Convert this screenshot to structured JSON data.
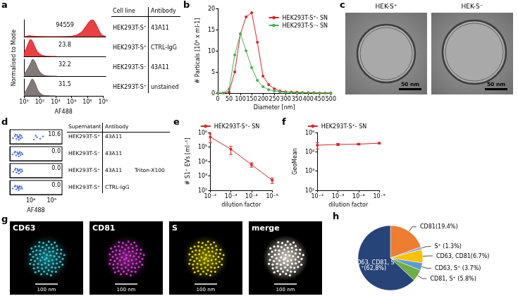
{
  "chart_data": [
    {
      "panel": "a",
      "type": "area",
      "xlabel": "AF488",
      "ylabel": "Normalised to Mode",
      "log": "x",
      "xlim": [
        10,
        1000000
      ],
      "xticks": [
        {
          "value": 10,
          "label": "10¹"
        },
        {
          "value": 100,
          "label": "10²"
        },
        {
          "value": 1000,
          "label": "10³"
        },
        {
          "value": 10000,
          "label": "10⁴"
        },
        {
          "value": 100000,
          "label": "10⁵"
        },
        {
          "value": 1000000,
          "label": "10⁶"
        }
      ],
      "ylim": [
        0,
        100
      ],
      "tick_labels": "x",
      "grid": false,
      "series": [
        {
          "color": "#e31e24",
          "mfi": 94559,
          "values": [
            [
              10,
              1
            ],
            [
              15,
              3
            ],
            [
              20,
              5
            ],
            [
              30,
              4
            ],
            [
              50,
              2
            ],
            [
              100,
              1
            ],
            [
              300,
              0.5
            ],
            [
              1000,
              0.5
            ],
            [
              3000,
              1
            ],
            [
              10000,
              4
            ],
            [
              30000,
              25
            ],
            [
              60000,
              60
            ],
            [
              100000,
              90
            ],
            [
              150000,
              100
            ],
            [
              250000,
              75
            ],
            [
              400000,
              35
            ],
            [
              600000,
              10
            ],
            [
              1000000,
              2
            ]
          ]
        },
        {
          "color": "#e31e24",
          "mfi": 23.8,
          "values": [
            [
              10,
              20
            ],
            [
              15,
              55
            ],
            [
              20,
              85
            ],
            [
              25,
              100
            ],
            [
              35,
              85
            ],
            [
              50,
              50
            ],
            [
              80,
              20
            ],
            [
              150,
              5
            ],
            [
              300,
              1
            ],
            [
              1000,
              0
            ]
          ]
        },
        {
          "color": "#6d6262",
          "mfi": 32.2,
          "values": [
            [
              10,
              10
            ],
            [
              15,
              35
            ],
            [
              25,
              75
            ],
            [
              35,
              100
            ],
            [
              50,
              80
            ],
            [
              80,
              35
            ],
            [
              150,
              8
            ],
            [
              300,
              1
            ],
            [
              1000,
              0
            ]
          ]
        },
        {
          "color": "#6d6262",
          "mfi": 31.5,
          "values": [
            [
              10,
              12
            ],
            [
              15,
              40
            ],
            [
              25,
              80
            ],
            [
              33,
              100
            ],
            [
              50,
              75
            ],
            [
              80,
              30
            ],
            [
              150,
              6
            ],
            [
              300,
              1
            ],
            [
              1000,
              0
            ]
          ]
        }
      ]
    },
    {
      "panel": "b",
      "type": "line",
      "xlabel": "Diameter [nm]",
      "ylabel": "# Particals [10⁸ x ml-1]",
      "x": [
        0,
        25,
        50,
        75,
        100,
        125,
        150,
        175,
        200,
        225,
        250,
        275,
        300,
        325,
        350,
        375,
        400,
        425,
        450,
        475,
        500
      ],
      "xlim": [
        0,
        500
      ],
      "xticks": [
        0,
        50,
        100,
        150,
        200,
        250,
        300,
        350,
        400,
        450,
        500
      ],
      "ylim": [
        0,
        20
      ],
      "yticks": [
        0,
        5,
        10,
        15,
        20
      ],
      "legend": "upper right",
      "marker": "circle",
      "grid": false,
      "series": [
        {
          "name": "HEK293T-S⁺- SN",
          "color": "#d7262b",
          "values": [
            0,
            0,
            0.3,
            5,
            14,
            18,
            19,
            12,
            4,
            2,
            1,
            0.5,
            0.3,
            0.2,
            0.2,
            0.1,
            0.1,
            0.1,
            0,
            0,
            0
          ]
        },
        {
          "name": "HEK293T-S⁻- SN",
          "color": "#4caf50",
          "values": [
            0,
            0,
            1,
            9,
            14,
            10,
            6,
            3,
            1.5,
            0.8,
            0.5,
            0.3,
            0.2,
            0.2,
            0.1,
            0.1,
            0.1,
            0,
            0,
            0,
            0
          ]
        }
      ]
    },
    {
      "panel": "d",
      "type": "scatter",
      "xlabel": "AF488",
      "log": "x",
      "xlim": [
        100,
        10000000
      ],
      "xticks": [
        {
          "value": 10000,
          "label": "10⁴"
        },
        {
          "value": 1000000,
          "label": "10⁶"
        }
      ],
      "ylim": [
        0,
        100
      ],
      "tick_labels": "x",
      "grid": false,
      "series": [
        {
          "color": "#2f55d4",
          "gate_percent": 10.6,
          "values": [
            [
              200,
              40
            ],
            [
              300,
              55
            ],
            [
              420,
              35
            ],
            [
              500,
              62
            ],
            [
              650,
              45
            ],
            [
              800,
              52
            ],
            [
              1000,
              38
            ],
            [
              1250,
              58
            ],
            [
              1500,
              44
            ],
            [
              720,
              28
            ],
            [
              350,
              66
            ],
            [
              900,
              64
            ],
            [
              560,
              50
            ],
            [
              20000,
              30
            ],
            [
              40000,
              46
            ],
            [
              80000,
              36
            ],
            [
              150000,
              52
            ],
            [
              30000,
              58
            ]
          ]
        },
        {
          "color": "#2f55d4",
          "gate_percent": {
            "value": 0,
            "label": "0.0"
          },
          "values": [
            [
              180,
              44
            ],
            [
              280,
              58
            ],
            [
              400,
              38
            ],
            [
              520,
              60
            ],
            [
              640,
              47
            ],
            [
              820,
              54
            ],
            [
              1050,
              40
            ],
            [
              1300,
              56
            ],
            [
              1600,
              46
            ],
            [
              700,
              30
            ],
            [
              330,
              64
            ],
            [
              920,
              62
            ],
            [
              600,
              50
            ]
          ]
        },
        {
          "color": "#2f55d4",
          "gate_percent": {
            "value": 0,
            "label": "0.0"
          },
          "values": [
            [
              210,
              42
            ],
            [
              310,
              56
            ],
            [
              430,
              36
            ],
            [
              540,
              61
            ],
            [
              660,
              48
            ],
            [
              850,
              52
            ],
            [
              1100,
              39
            ],
            [
              1350,
              57
            ],
            [
              1550,
              45
            ],
            [
              740,
              29
            ],
            [
              360,
              65
            ],
            [
              950,
              60
            ],
            [
              580,
              51
            ]
          ]
        },
        {
          "color": "#2f55d4",
          "gate_percent": {
            "value": 0,
            "label": "0.0"
          },
          "values": [
            [
              190,
              43
            ],
            [
              290,
              57
            ],
            [
              410,
              37
            ],
            [
              510,
              59
            ],
            [
              630,
              46
            ],
            [
              790,
              53
            ],
            [
              980,
              41
            ],
            [
              1280,
              55
            ],
            [
              1500,
              43
            ],
            [
              690,
              31
            ],
            [
              340,
              63
            ],
            [
              880,
              61
            ],
            [
              570,
              49
            ]
          ]
        }
      ]
    },
    {
      "panel": "e",
      "type": "line",
      "log": true,
      "xlabel": "dilution factor",
      "ylabel": "# S1⁺ EVs [ml⁻¹]",
      "x": [
        0.01,
        0.001,
        0.0001,
        1e-05
      ],
      "xlim": [
        0.01,
        1e-05
      ],
      "xticks": [
        {
          "value": 0.01,
          "label": "10⁻²"
        },
        {
          "value": 0.001,
          "label": "10⁻³"
        },
        {
          "value": 0.0001,
          "label": "10⁻⁴"
        },
        {
          "value": 1e-05,
          "label": "10⁻⁵"
        }
      ],
      "ylim": [
        100,
        1000000
      ],
      "yticks": [
        {
          "value": 100,
          "label": "10²"
        },
        {
          "value": 1000,
          "label": "10³"
        },
        {
          "value": 10000,
          "label": "10⁴"
        },
        {
          "value": 100000,
          "label": "10⁵"
        },
        {
          "value": 1000000,
          "label": "10⁶"
        }
      ],
      "legend": "top",
      "marker": "circle",
      "grid": false,
      "series": [
        {
          "name": "HEK293T-S⁺- SN",
          "color": "#d7262b",
          "values": [
            500000,
            70000,
            6000,
            500
          ],
          "errors": [
            300000,
            40000,
            2000,
            200
          ]
        }
      ]
    },
    {
      "panel": "f",
      "type": "line",
      "log": true,
      "xlabel": "dilution factor",
      "ylabel": "GeoMean",
      "x": [
        0.01,
        0.001,
        0.0001,
        1e-05
      ],
      "xlim": [
        0.01,
        1e-05
      ],
      "xticks": [
        {
          "value": 0.01,
          "label": "10⁻²"
        },
        {
          "value": 0.001,
          "label": "10⁻³"
        },
        {
          "value": 0.0001,
          "label": "10⁻⁴"
        },
        {
          "value": 1e-05,
          "label": "10⁻⁵"
        }
      ],
      "ylim": [
        100,
        100000
      ],
      "yticks": [
        {
          "value": 100,
          "label": "10²"
        },
        {
          "value": 1000,
          "label": "10³"
        },
        {
          "value": 10000,
          "label": "10⁴"
        },
        {
          "value": 100000,
          "label": "10⁵"
        }
      ],
      "legend": "top",
      "marker": "circle",
      "grid": false,
      "series": [
        {
          "name": "HEK293T-S⁺- SN",
          "color": "#d7262b",
          "values": [
            22000,
            24000,
            25000,
            28000
          ],
          "errors": [
            8000,
            3000,
            2000,
            2000
          ]
        }
      ]
    },
    {
      "panel": "h",
      "type": "pie",
      "categories": [
        "CD81(19.4%)",
        "S⁺ (1.3%)",
        "CD63, CD81(6.7%)",
        "CD63, S⁺ (3.7%)",
        "CD81, S⁺ (5.8%)",
        "CD63, CD81, S⁺(62,8%)"
      ],
      "values": [
        19.4,
        1.3,
        6.7,
        3.7,
        5.8,
        62.8
      ],
      "colors": [
        "#ed7d31",
        "#8faadc",
        "#ffc000",
        "#5b9bd5",
        "#70ad47",
        "#264478"
      ]
    }
  ],
  "tables": {
    "a": {
      "header": [
        "Cell line",
        "Antibody"
      ],
      "rows": [
        [
          "HEK293T-S⁺",
          "43A11"
        ],
        [
          "HEK293T-S⁺",
          "CTRL-IgG"
        ],
        [
          "HEK293T-S⁻",
          "43A11"
        ],
        [
          "HEK293T-S⁺",
          "unstained"
        ]
      ]
    },
    "d": {
      "header": [
        "Supernatant",
        "Antibody"
      ],
      "rows": [
        [
          "HEK293T-S⁺",
          "43A11"
        ],
        [
          "HEK293T-S⁻",
          "43A11"
        ],
        [
          "HEK293T-S⁺",
          "43A11",
          "Triton-X100"
        ],
        [
          "HEK293T-S⁺",
          "CTRL-IgG"
        ]
      ]
    }
  },
  "images": {
    "c": {
      "panel": "c",
      "items": [
        {
          "title": "HEK-S⁺",
          "scale_bar": "50 nm"
        },
        {
          "title": "HEK-S⁻",
          "scale_bar": "50 nm"
        }
      ]
    },
    "g": {
      "panel": "g",
      "items": [
        {
          "title": "CD63",
          "color": "#33d6e6",
          "scale_bar": "100 nm"
        },
        {
          "title": "CD81",
          "color": "#e23ce0",
          "scale_bar": "100 nm"
        },
        {
          "title": "S",
          "color": "#f2e600",
          "scale_bar": "100 nm"
        },
        {
          "title": "merge",
          "scale_bar": "100 nm"
        }
      ]
    }
  }
}
